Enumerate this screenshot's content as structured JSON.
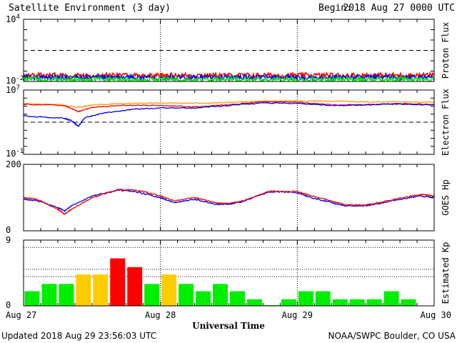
{
  "title": "Satellite Environment (3 day)",
  "begin_label": "Begin:",
  "begin_value": "2018 Aug 27 0000 UTC",
  "xlabel": "Universal Time",
  "updated": "Updated 2018 Aug 29 23:56:03 UTC",
  "credit": "NOAA/SWPC Boulder, CO USA",
  "x_ticks": [
    "Aug 27",
    "Aug 28",
    "Aug 29",
    "Aug 30"
  ],
  "colors": {
    "red": "#ff0000",
    "blue": "#0000ee",
    "green": "#00ee00",
    "orange": "#ff9900",
    "yellow": "#ffcc00"
  },
  "chart_data": [
    {
      "type": "line",
      "ylabel": "Proton Flux",
      "yscale": "log",
      "ylim": [
        0.01,
        10000
      ],
      "y_tick_labels": [
        {
          "base": "10",
          "exp": "4",
          "value": 10000
        },
        {
          "base": "10",
          "exp": "-2",
          "value": 0.01
        }
      ],
      "threshold": 10,
      "x_days": [
        0,
        3
      ],
      "series": [
        {
          "color": "#ff0000",
          "level": 0.04
        },
        {
          "color": "#0000ee",
          "level": 0.025
        },
        {
          "color": "#00ee00",
          "level": 0.016
        }
      ]
    },
    {
      "type": "line",
      "ylabel": "Electron Flux",
      "yscale": "log",
      "ylim": [
        0.1,
        10000000
      ],
      "y_tick_labels": [
        {
          "base": "10",
          "exp": "7",
          "value": 10000000
        },
        {
          "base": "10",
          "exp": "-1",
          "value": 0.1
        }
      ],
      "threshold": 1000,
      "series": [
        {
          "color": "#ff9900",
          "points": [
            [
              0,
              200000
            ],
            [
              0.25,
              160000
            ],
            [
              0.4,
              70000
            ],
            [
              0.5,
              140000
            ],
            [
              0.75,
              220000
            ],
            [
              1,
              250000
            ],
            [
              1.25,
              230000
            ],
            [
              1.5,
              280000
            ],
            [
              1.75,
              400000
            ],
            [
              2,
              450000
            ],
            [
              2.25,
              420000
            ],
            [
              2.5,
              330000
            ],
            [
              2.75,
              350000
            ],
            [
              3,
              300000
            ]
          ]
        },
        {
          "color": "#ff0000",
          "points": [
            [
              0,
              170000
            ],
            [
              0.3,
              120000
            ],
            [
              0.4,
              20000
            ],
            [
              0.5,
              70000
            ],
            [
              0.75,
              130000
            ],
            [
              1,
              120000
            ],
            [
              1.25,
              80000
            ],
            [
              1.5,
              150000
            ],
            [
              1.75,
              350000
            ],
            [
              2,
              320000
            ],
            [
              2.25,
              140000
            ],
            [
              2.5,
              150000
            ],
            [
              2.75,
              200000
            ],
            [
              3,
              160000
            ]
          ]
        },
        {
          "color": "#0000ee",
          "points": [
            [
              0,
              6000
            ],
            [
              0.3,
              3000
            ],
            [
              0.35,
              1500
            ],
            [
              0.4,
              300
            ],
            [
              0.45,
              4000
            ],
            [
              0.6,
              15000
            ],
            [
              0.8,
              40000
            ],
            [
              1,
              60000
            ],
            [
              1.25,
              60000
            ],
            [
              1.5,
              120000
            ],
            [
              1.75,
              250000
            ],
            [
              2,
              220000
            ],
            [
              2.25,
              120000
            ],
            [
              2.5,
              140000
            ],
            [
              2.75,
              180000
            ],
            [
              3,
              140000
            ]
          ]
        }
      ]
    },
    {
      "type": "line",
      "ylabel": "GOES Hp",
      "yscale": "linear",
      "ylim": [
        0,
        200
      ],
      "y_tick_labels": [
        {
          "base": "200",
          "exp": "",
          "value": 200
        },
        {
          "base": "0",
          "exp": "",
          "value": 0
        }
      ],
      "series": [
        {
          "color": "#0000ee",
          "points": [
            [
              0,
              95
            ],
            [
              0.1,
              90
            ],
            [
              0.25,
              70
            ],
            [
              0.3,
              60
            ],
            [
              0.35,
              75
            ],
            [
              0.5,
              105
            ],
            [
              0.7,
              123
            ],
            [
              0.85,
              115
            ],
            [
              1,
              100
            ],
            [
              1.1,
              85
            ],
            [
              1.25,
              95
            ],
            [
              1.4,
              80
            ],
            [
              1.5,
              80
            ],
            [
              1.6,
              88
            ],
            [
              1.8,
              118
            ],
            [
              2,
              115
            ],
            [
              2.1,
              100
            ],
            [
              2.25,
              85
            ],
            [
              2.35,
              75
            ],
            [
              2.5,
              75
            ],
            [
              2.6,
              82
            ],
            [
              2.75,
              95
            ],
            [
              2.9,
              105
            ],
            [
              3,
              100
            ]
          ]
        },
        {
          "color": "#ff0000",
          "points": [
            [
              0,
              100
            ],
            [
              0.1,
              95
            ],
            [
              0.25,
              65
            ],
            [
              0.3,
              50
            ],
            [
              0.35,
              65
            ],
            [
              0.5,
              100
            ],
            [
              0.7,
              125
            ],
            [
              0.85,
              120
            ],
            [
              1,
              105
            ],
            [
              1.1,
              90
            ],
            [
              1.25,
              100
            ],
            [
              1.4,
              85
            ],
            [
              1.5,
              82
            ],
            [
              1.6,
              90
            ],
            [
              1.8,
              120
            ],
            [
              2,
              118
            ],
            [
              2.1,
              105
            ],
            [
              2.25,
              90
            ],
            [
              2.35,
              78
            ],
            [
              2.5,
              78
            ],
            [
              2.6,
              85
            ],
            [
              2.75,
              98
            ],
            [
              2.9,
              110
            ],
            [
              3,
              105
            ]
          ]
        }
      ]
    },
    {
      "type": "bar",
      "ylabel": "Estimated Kp",
      "ylim": [
        0,
        9
      ],
      "y_tick_labels": [
        {
          "base": "9",
          "exp": "",
          "value": 9
        },
        {
          "base": "0",
          "exp": "",
          "value": 0
        }
      ],
      "dotted_levels": [
        4,
        5,
        8
      ],
      "bar_width_hours": 3,
      "values": [
        2,
        3,
        3,
        4.3,
        4.3,
        6.5,
        5.3,
        3,
        4.3,
        3,
        2,
        3,
        2,
        0.9,
        0.1,
        0.9,
        2,
        2,
        0.9,
        0.9,
        0.9,
        2,
        0.9,
        0
      ],
      "color_rule": {
        "green_below": 4,
        "yellow_below": 5,
        "above": "red"
      }
    }
  ]
}
